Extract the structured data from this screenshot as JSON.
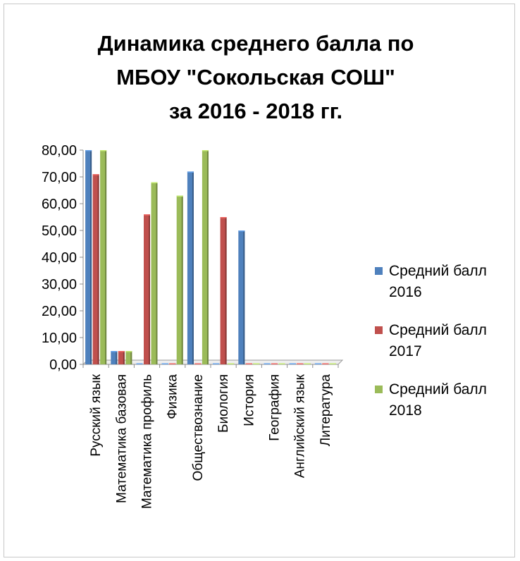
{
  "title": {
    "line1": "Динамика среднего балла по",
    "line2": "МБОУ \"Сокольская СОШ\"",
    "line3": "за 2016 - 2018 гг."
  },
  "chart_data": {
    "type": "bar",
    "title": "Динамика среднего балла по МБОУ \"Сокольская СОШ\" за 2016 - 2018 гг.",
    "categories": [
      "Русский язык",
      "Математика базовая",
      "Математика профиль",
      "Физика",
      "Обществознание",
      "Биология",
      "История",
      "География",
      "Английский язык",
      "Литература"
    ],
    "series": [
      {
        "name": "Средний балл 2016",
        "color": "#4F81BD",
        "values": [
          80,
          5,
          0,
          0,
          72,
          0,
          50,
          0,
          0,
          0
        ]
      },
      {
        "name": "Средний балл 2017",
        "color": "#C0504D",
        "values": [
          71,
          5,
          56,
          0,
          0,
          55,
          0,
          0,
          0,
          0
        ]
      },
      {
        "name": "Средний балл 2018",
        "color": "#9BBB59",
        "values": [
          80,
          5,
          68,
          63,
          80,
          0,
          0,
          0,
          0,
          0
        ]
      }
    ],
    "yticks": [
      "0,00",
      "10,00",
      "20,00",
      "30,00",
      "40,00",
      "50,00",
      "60,00",
      "70,00",
      "80,00"
    ],
    "ylim": [
      0,
      80
    ],
    "xlabel": "",
    "ylabel": "",
    "grid": false,
    "legend": "right"
  },
  "legend": {
    "items": [
      {
        "line1": "Средний балл",
        "line2": "2016",
        "color": "#4F81BD"
      },
      {
        "line1": "Средний балл",
        "line2": "2017",
        "color": "#C0504D"
      },
      {
        "line1": "Средний балл",
        "line2": "2018",
        "color": "#9BBB59"
      }
    ]
  }
}
